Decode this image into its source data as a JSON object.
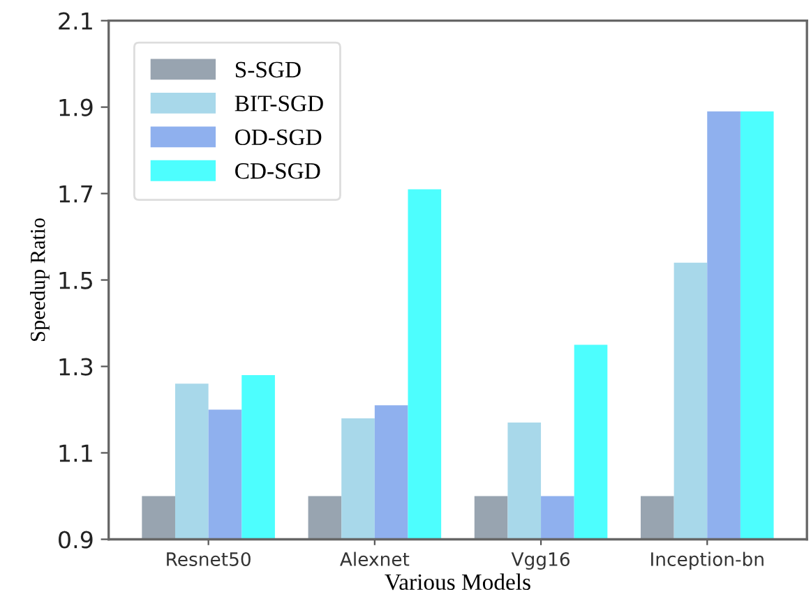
{
  "chart_data": {
    "type": "bar",
    "xlabel": "Various Models",
    "ylabel": "Speedup Ratio",
    "categories": [
      "Resnet50",
      "Alexnet",
      "Vgg16",
      "Inception-bn"
    ],
    "series": [
      {
        "name": "S-SGD",
        "color": "#98a4b0",
        "values": [
          1.0,
          1.0,
          1.0,
          1.0
        ]
      },
      {
        "name": "BIT-SGD",
        "color": "#a8d8ea",
        "values": [
          1.26,
          1.18,
          1.17,
          1.54
        ]
      },
      {
        "name": "OD-SGD",
        "color": "#8fb0ee",
        "values": [
          1.2,
          1.21,
          1.0,
          1.89
        ]
      },
      {
        "name": "CD-SGD",
        "color": "#4dfefe",
        "values": [
          1.28,
          1.71,
          1.35,
          1.89
        ]
      }
    ],
    "ylim": [
      0.9,
      2.1
    ],
    "yticks": [
      0.9,
      1.1,
      1.3,
      1.5,
      1.7,
      1.9,
      2.1
    ],
    "grid": false,
    "legend": "top left"
  }
}
